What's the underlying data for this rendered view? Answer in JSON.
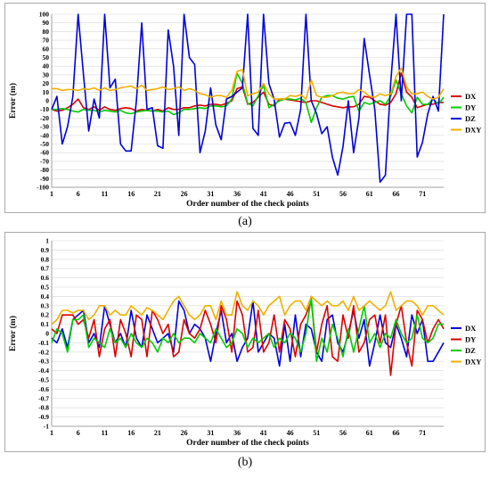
{
  "captions": [
    "(a)",
    "(b)"
  ],
  "chart_data": [
    {
      "type": "line",
      "title": "",
      "xlabel": "Order number of the check points",
      "ylabel": "Error (m)",
      "xlim": [
        1,
        75
      ],
      "ylim": [
        -100,
        100
      ],
      "ytick_step": 10,
      "xticks": [
        1,
        6,
        11,
        16,
        21,
        26,
        31,
        36,
        41,
        46,
        51,
        56,
        61,
        66,
        71
      ],
      "legend_position": "right",
      "x": [
        1,
        2,
        3,
        4,
        5,
        6,
        7,
        8,
        9,
        10,
        11,
        12,
        13,
        14,
        15,
        16,
        17,
        18,
        19,
        20,
        21,
        22,
        23,
        24,
        25,
        26,
        27,
        28,
        29,
        30,
        31,
        32,
        33,
        34,
        35,
        36,
        37,
        38,
        39,
        40,
        41,
        42,
        43,
        44,
        45,
        46,
        47,
        48,
        49,
        50,
        51,
        52,
        53,
        54,
        55,
        56,
        57,
        58,
        59,
        60,
        61,
        62,
        63,
        64,
        65,
        66,
        67,
        68,
        69,
        70,
        71,
        72,
        73,
        74,
        75
      ],
      "series": [
        {
          "name": "DX",
          "color": "#dd0000",
          "values": [
            -10,
            -12,
            -11,
            -8,
            -4,
            2,
            -8,
            -10,
            -7,
            -11,
            -7,
            -10,
            -11,
            -9,
            -8,
            -9,
            -12,
            -10,
            -11,
            -12,
            -10,
            -12,
            -8,
            -10,
            -10,
            -8,
            -8,
            -6,
            -5,
            -6,
            -4,
            -4,
            -5,
            -3,
            0,
            14,
            16,
            -4,
            -2,
            4,
            10,
            -4,
            -6,
            2,
            2,
            1,
            0,
            -1,
            -2,
            0,
            0,
            -2,
            -4,
            -6,
            -7,
            -8,
            -7,
            -7,
            -4,
            5,
            4,
            0,
            -4,
            -5,
            -2,
            8,
            32,
            10,
            4,
            -8,
            -6,
            -4,
            -4,
            -2,
            -2
          ]
        },
        {
          "name": "DY",
          "color": "#00cc00",
          "values": [
            -10,
            -10,
            -9,
            -10,
            -12,
            -13,
            -10,
            -11,
            -11,
            -13,
            -11,
            -12,
            -13,
            -11,
            -14,
            -15,
            -13,
            -12,
            -11,
            -12,
            -12,
            -13,
            -12,
            -16,
            -14,
            -10,
            -10,
            -9,
            -8,
            -9,
            -6,
            -6,
            -7,
            -6,
            2,
            32,
            20,
            -3,
            -6,
            6,
            18,
            -8,
            -4,
            0,
            2,
            2,
            1,
            3,
            -2,
            -25,
            -8,
            4,
            6,
            6,
            3,
            2,
            4,
            5,
            -12,
            -2,
            -4,
            -2,
            0,
            -4,
            5,
            24,
            8,
            -6,
            -14,
            4,
            -4,
            -4,
            2,
            -4,
            4
          ]
        },
        {
          "name": "DZ",
          "color": "#0000dd",
          "values": [
            -10,
            5,
            -50,
            -30,
            5,
            100,
            30,
            -35,
            2,
            -20,
            100,
            15,
            25,
            -50,
            -58,
            -58,
            0,
            90,
            -10,
            -8,
            -52,
            -55,
            82,
            40,
            -40,
            100,
            50,
            42,
            -60,
            -35,
            15,
            -28,
            -45,
            2,
            5,
            10,
            15,
            100,
            -32,
            -40,
            100,
            20,
            2,
            -42,
            -26,
            -25,
            -40,
            -10,
            100,
            0,
            -15,
            -38,
            -30,
            -65,
            -86,
            -53,
            0,
            -60,
            -20,
            72,
            30,
            -10,
            -94,
            -86,
            20,
            100,
            0,
            100,
            100,
            -65,
            -48,
            -15,
            5,
            -12,
            100
          ]
        },
        {
          "name": "DXY",
          "color": "#f0b000",
          "values": [
            14,
            14,
            12,
            13,
            13,
            12,
            14,
            13,
            15,
            12,
            15,
            12,
            13,
            15,
            16,
            17,
            14,
            18,
            12,
            13,
            14,
            16,
            13,
            14,
            16,
            12,
            14,
            12,
            8,
            7,
            4,
            6,
            6,
            4,
            12,
            34,
            36,
            6,
            8,
            10,
            20,
            8,
            2,
            2,
            2,
            6,
            5,
            7,
            2,
            24,
            6,
            4,
            4,
            6,
            9,
            10,
            8,
            8,
            13,
            10,
            5,
            4,
            8,
            6,
            8,
            28,
            38,
            16,
            8,
            8,
            10,
            5,
            2,
            4,
            14
          ]
        }
      ]
    },
    {
      "type": "line",
      "title": "",
      "xlabel": "Order number of the check points",
      "ylabel": "Error (m)",
      "xlim": [
        1,
        75
      ],
      "ylim": [
        -1,
        1
      ],
      "ytick_step": 0.1,
      "xticks": [
        1,
        6,
        11,
        16,
        21,
        26,
        31,
        36,
        41,
        46,
        51,
        56,
        61,
        66,
        71
      ],
      "legend_position": "right",
      "x": [
        1,
        2,
        3,
        4,
        5,
        6,
        7,
        8,
        9,
        10,
        11,
        12,
        13,
        14,
        15,
        16,
        17,
        18,
        19,
        20,
        21,
        22,
        23,
        24,
        25,
        26,
        27,
        28,
        29,
        30,
        31,
        32,
        33,
        34,
        35,
        36,
        37,
        38,
        39,
        40,
        41,
        42,
        43,
        44,
        45,
        46,
        47,
        48,
        49,
        50,
        51,
        52,
        53,
        54,
        55,
        56,
        57,
        58,
        59,
        60,
        61,
        62,
        63,
        64,
        65,
        66,
        67,
        68,
        69,
        70,
        71,
        72,
        73,
        74,
        75
      ],
      "series": [
        {
          "name": "DX",
          "color": "#0000dd",
          "values": [
            -0.05,
            -0.1,
            0.05,
            -0.15,
            0.15,
            0.2,
            0.25,
            -0.1,
            0.0,
            -0.15,
            0.3,
            0.1,
            -0.1,
            0.0,
            -0.15,
            0.25,
            -0.05,
            -0.15,
            0.2,
            0.05,
            -0.1,
            -0.05,
            0.0,
            -0.2,
            0.35,
            0.25,
            0.0,
            0.1,
            0.05,
            -0.05,
            -0.3,
            0.0,
            0.25,
            -0.1,
            0.0,
            -0.3,
            -0.15,
            -0.05,
            0.35,
            -0.2,
            -0.1,
            0.0,
            -0.05,
            -0.35,
            0.1,
            -0.3,
            0.2,
            -0.25,
            0.1,
            0.05,
            -0.2,
            -0.3,
            0.15,
            0.2,
            -0.1,
            -0.2,
            0.0,
            0.25,
            -0.05,
            0.15,
            -0.35,
            -0.1,
            0.2,
            -0.1,
            -0.15,
            0.1,
            -0.05,
            -0.25,
            0.2,
            0.0,
            0.15,
            -0.3,
            -0.3,
            -0.2,
            -0.1
          ]
        },
        {
          "name": "DY",
          "color": "#dd0000",
          "values": [
            0.05,
            0.0,
            0.2,
            0.2,
            0.2,
            0.1,
            0.15,
            -0.05,
            0.15,
            -0.25,
            0.05,
            0.15,
            -0.25,
            0.15,
            0.0,
            -0.25,
            0.2,
            0.15,
            -0.25,
            0.25,
            0.15,
            0.0,
            0.1,
            -0.25,
            -0.2,
            0.15,
            0.0,
            -0.05,
            0.05,
            0.25,
            0.1,
            -0.1,
            0.3,
            0.15,
            -0.2,
            0.35,
            0.2,
            -0.2,
            -0.15,
            0.25,
            -0.2,
            -0.1,
            0.2,
            -0.2,
            0.15,
            0.05,
            -0.25,
            0.1,
            0.2,
            0.35,
            -0.2,
            0.1,
            0.3,
            -0.25,
            -0.3,
            0.2,
            -0.05,
            0.3,
            -0.2,
            -0.1,
            0.15,
            0.2,
            -0.1,
            0.2,
            -0.45,
            0.1,
            0.3,
            -0.1,
            -0.35,
            0.25,
            0.15,
            -0.1,
            0.05,
            0.15,
            0.05
          ]
        },
        {
          "name": "DZ",
          "color": "#00cc00",
          "values": [
            -0.1,
            0.05,
            0.0,
            -0.2,
            0.15,
            0.15,
            0.2,
            -0.15,
            -0.05,
            -0.1,
            -0.15,
            0.05,
            -0.1,
            -0.05,
            -0.15,
            0.0,
            -0.1,
            -0.15,
            -0.05,
            -0.1,
            -0.2,
            -0.05,
            -0.1,
            0.0,
            -0.1,
            -0.05,
            -0.05,
            -0.1,
            0.0,
            -0.05,
            -0.1,
            0.05,
            -0.05,
            -0.15,
            -0.1,
            0.05,
            0.0,
            -0.15,
            -0.05,
            -0.1,
            -0.05,
            0.0,
            -0.15,
            -0.05,
            -0.1,
            0.0,
            -0.05,
            -0.2,
            0.0,
            0.4,
            -0.3,
            -0.05,
            -0.2,
            0.1,
            -0.05,
            -0.25,
            0.05,
            -0.2,
            0.05,
            0.3,
            -0.1,
            0.0,
            -0.15,
            0.0,
            -0.05,
            0.15,
            0.0,
            -0.1,
            -0.05,
            0.2,
            -0.05,
            -0.1,
            -0.05,
            0.1,
            0.1
          ]
        },
        {
          "name": "DXY",
          "color": "#f0b000",
          "values": [
            0.1,
            0.15,
            0.25,
            0.25,
            0.22,
            0.25,
            0.25,
            0.15,
            0.2,
            0.3,
            0.3,
            0.2,
            0.25,
            0.2,
            0.2,
            0.3,
            0.25,
            0.2,
            0.28,
            0.25,
            0.2,
            0.15,
            0.25,
            0.35,
            0.4,
            0.3,
            0.2,
            0.15,
            0.2,
            0.3,
            0.3,
            0.15,
            0.35,
            0.2,
            0.2,
            0.45,
            0.3,
            0.25,
            0.35,
            0.3,
            0.2,
            0.3,
            0.35,
            0.4,
            0.2,
            0.3,
            0.35,
            0.35,
            0.25,
            0.4,
            0.35,
            0.3,
            0.35,
            0.3,
            0.3,
            0.35,
            0.25,
            0.4,
            0.25,
            0.3,
            0.35,
            0.3,
            0.25,
            0.3,
            0.45,
            0.25,
            0.3,
            0.35,
            0.35,
            0.3,
            0.2,
            0.3,
            0.3,
            0.25,
            0.2
          ]
        }
      ]
    }
  ]
}
